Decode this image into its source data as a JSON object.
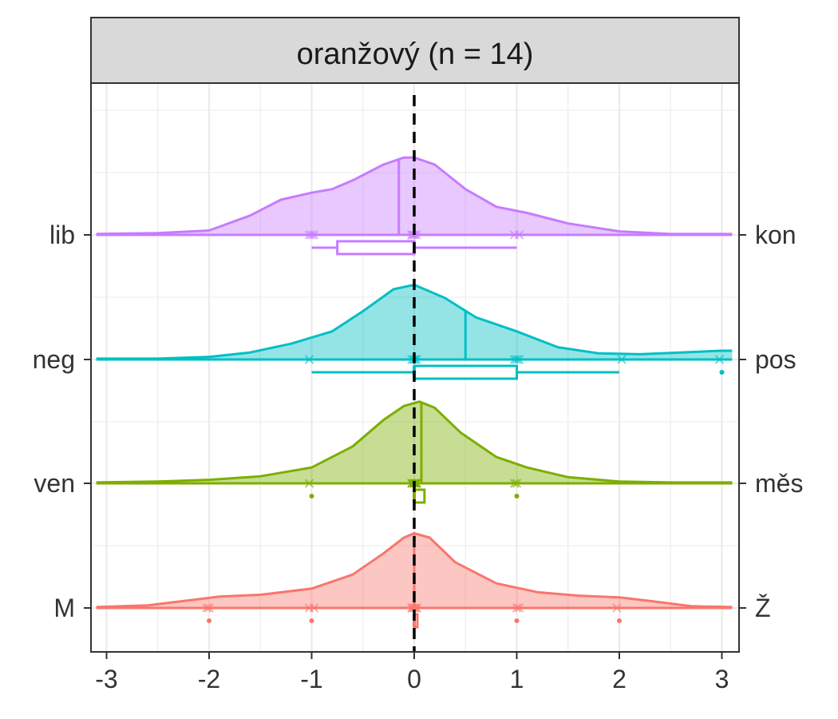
{
  "chart_data": {
    "type": "ridgeline",
    "panel_title": "oranžový (n = 14)",
    "xlim": [
      -3.1,
      3.1
    ],
    "x_ticks": [
      "-3",
      "-2",
      "-1",
      "0",
      "1",
      "2",
      "3"
    ],
    "reference_line_x": 0,
    "grid": true,
    "series": [
      {
        "left_label": "M",
        "right_label": "Ž",
        "color": "#F8766D",
        "density": [
          [
            -3.1,
            0.01
          ],
          [
            -2.6,
            0.03
          ],
          [
            -2.1,
            0.1
          ],
          [
            -1.9,
            0.13
          ],
          [
            -1.5,
            0.15
          ],
          [
            -1.0,
            0.22
          ],
          [
            -0.6,
            0.38
          ],
          [
            -0.3,
            0.62
          ],
          [
            -0.1,
            0.8
          ],
          [
            0.0,
            0.85
          ],
          [
            0.15,
            0.8
          ],
          [
            0.4,
            0.52
          ],
          [
            0.8,
            0.28
          ],
          [
            1.2,
            0.18
          ],
          [
            1.6,
            0.14
          ],
          [
            2.0,
            0.12
          ],
          [
            2.3,
            0.08
          ],
          [
            2.7,
            0.02
          ],
          [
            3.1,
            0.01
          ]
        ],
        "mean": 0.0,
        "points": [
          -2,
          -2,
          -1,
          -1,
          0,
          0,
          0,
          0,
          0,
          0,
          1,
          1,
          2
        ],
        "jitter": [
          -2,
          -1,
          0,
          0,
          0,
          1,
          2
        ],
        "box": {
          "min": 0,
          "q1": 0,
          "median": 0,
          "q3": 0,
          "max": 0
        },
        "outliers": [
          -2,
          -1,
          1,
          2
        ]
      },
      {
        "left_label": "ven",
        "right_label": "měs",
        "color": "#7CAE00",
        "density": [
          [
            -3.1,
            0.01
          ],
          [
            -2.5,
            0.02
          ],
          [
            -2.0,
            0.04
          ],
          [
            -1.5,
            0.08
          ],
          [
            -1.0,
            0.18
          ],
          [
            -0.6,
            0.42
          ],
          [
            -0.3,
            0.72
          ],
          [
            -0.1,
            0.88
          ],
          [
            0.05,
            0.93
          ],
          [
            0.2,
            0.86
          ],
          [
            0.45,
            0.58
          ],
          [
            0.8,
            0.3
          ],
          [
            1.1,
            0.18
          ],
          [
            1.5,
            0.07
          ],
          [
            2.0,
            0.02
          ],
          [
            2.5,
            0.01
          ],
          [
            3.1,
            0.01
          ]
        ],
        "mean": 0.07,
        "points": [
          -1,
          0,
          0,
          0,
          0,
          0,
          0,
          0,
          0,
          0,
          0,
          0,
          1,
          1
        ],
        "jitter": [
          -1,
          0,
          0,
          1
        ],
        "box": {
          "min": 0,
          "q1": 0,
          "median": 0,
          "q3": 0.1,
          "max": 0.1
        },
        "outliers": [
          -1,
          1
        ]
      },
      {
        "left_label": "neg",
        "right_label": "pos",
        "color": "#00BFC4",
        "density": [
          [
            -3.1,
            0.01
          ],
          [
            -2.5,
            0.01
          ],
          [
            -2.0,
            0.03
          ],
          [
            -1.6,
            0.08
          ],
          [
            -1.2,
            0.18
          ],
          [
            -0.8,
            0.32
          ],
          [
            -0.5,
            0.55
          ],
          [
            -0.2,
            0.8
          ],
          [
            0.0,
            0.85
          ],
          [
            0.3,
            0.7
          ],
          [
            0.6,
            0.48
          ],
          [
            1.0,
            0.32
          ],
          [
            1.4,
            0.14
          ],
          [
            1.8,
            0.07
          ],
          [
            2.2,
            0.06
          ],
          [
            2.6,
            0.08
          ],
          [
            3.0,
            0.1
          ],
          [
            3.1,
            0.1
          ]
        ],
        "mean": 0.5,
        "points": [
          -1,
          0,
          0,
          0,
          0,
          1,
          1,
          1,
          2,
          3
        ],
        "jitter": [
          -1,
          0,
          0,
          1,
          1,
          2,
          3
        ],
        "box": {
          "min": -1,
          "q1": 0,
          "median": 0,
          "q3": 1,
          "max": 2
        },
        "outliers": [
          3
        ]
      },
      {
        "left_label": "lib",
        "right_label": "kon",
        "color": "#C77CFF",
        "density": [
          [
            -3.1,
            0.01
          ],
          [
            -2.5,
            0.02
          ],
          [
            -2.0,
            0.05
          ],
          [
            -1.6,
            0.22
          ],
          [
            -1.3,
            0.4
          ],
          [
            -1.0,
            0.48
          ],
          [
            -0.8,
            0.52
          ],
          [
            -0.6,
            0.62
          ],
          [
            -0.3,
            0.8
          ],
          [
            -0.1,
            0.88
          ],
          [
            0.0,
            0.88
          ],
          [
            0.2,
            0.8
          ],
          [
            0.5,
            0.52
          ],
          [
            0.8,
            0.32
          ],
          [
            1.1,
            0.25
          ],
          [
            1.5,
            0.13
          ],
          [
            2.0,
            0.04
          ],
          [
            2.5,
            0.01
          ],
          [
            3.1,
            0.01
          ]
        ],
        "mean": -0.15,
        "points": [
          -1,
          -1,
          -1,
          0,
          0,
          0,
          0,
          0,
          1,
          1
        ],
        "jitter": [
          -1,
          -1,
          0,
          0,
          1
        ],
        "box": {
          "min": -1,
          "q1": -0.75,
          "median": 0,
          "q3": 0,
          "max": 1
        },
        "outliers": []
      }
    ]
  }
}
